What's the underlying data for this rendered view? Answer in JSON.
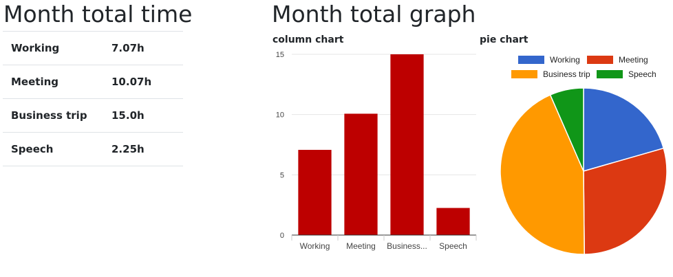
{
  "left_section": {
    "title": "Month total time",
    "rows": [
      {
        "category": "Working",
        "value": "7.07h"
      },
      {
        "category": "Meeting",
        "value": "10.07h"
      },
      {
        "category": "Business trip",
        "value": "15.0h"
      },
      {
        "category": "Speech",
        "value": "2.25h"
      }
    ]
  },
  "right_section": {
    "title": "Month total graph",
    "column_chart_title": "column chart",
    "pie_chart_title": "pie chart"
  },
  "chart_data": [
    {
      "type": "bar",
      "title": "column chart",
      "categories": [
        "Working",
        "Meeting",
        "Business...",
        "Speech"
      ],
      "values": [
        7.07,
        10.07,
        15.0,
        2.25
      ],
      "yticks": [
        "0",
        "5",
        "10",
        "15"
      ],
      "ylim": [
        0,
        15
      ],
      "grid": true,
      "color": "#bd0000"
    },
    {
      "type": "pie",
      "title": "pie chart",
      "labels": [
        "Working",
        "Meeting",
        "Business trip",
        "Speech"
      ],
      "values": [
        7.07,
        10.07,
        15.0,
        2.25
      ],
      "colors": [
        "#3366cc",
        "#dc3912",
        "#ff9900",
        "#109618"
      ],
      "legend": "top"
    }
  ]
}
